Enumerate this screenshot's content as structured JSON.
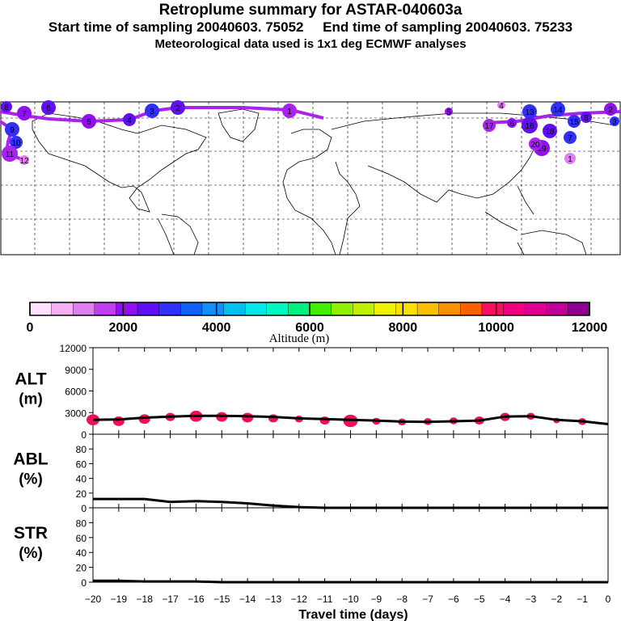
{
  "header": {
    "title": "Retroplume summary for ASTAR-040603a",
    "start_label": "Start time of sampling",
    "start_value": "20040603. 75052",
    "end_label": "End time of sampling",
    "end_value": "20040603. 75233",
    "met_line": "Meteorological data used is 1x1 deg ECMWF analyses"
  },
  "map": {
    "track_color": "#aa22ee",
    "labels": [
      "1",
      "2",
      "3",
      "4",
      "5",
      "6",
      "7",
      "8",
      "9",
      "10",
      "11",
      "12",
      "13",
      "14",
      "15",
      "16",
      "17",
      "18",
      "19",
      "20"
    ]
  },
  "colorbar": {
    "title": "Altitude (m)",
    "tick_labels": [
      "0",
      "2000",
      "4000",
      "6000",
      "8000",
      "10000",
      "12000"
    ],
    "colors": [
      "#ffe0ff",
      "#f4b0f4",
      "#e080f0",
      "#c040f0",
      "#9010f0",
      "#6010f8",
      "#3030f8",
      "#1060f8",
      "#1090f8",
      "#00c0f0",
      "#00e8e8",
      "#00f8c0",
      "#00f080",
      "#40f000",
      "#90f000",
      "#c0f000",
      "#f0f000",
      "#f8e000",
      "#f8c000",
      "#f89000",
      "#f86000",
      "#f81060",
      "#f00080",
      "#e00090",
      "#c00098",
      "#900090"
    ]
  },
  "chart_data": [
    {
      "type": "line",
      "panel": "ALT",
      "ylabel": "ALT\n(m)",
      "ylabel_lines": [
        "ALT",
        "(m)"
      ],
      "x": [
        -20,
        -19,
        -18,
        -17,
        -16,
        -15,
        -14,
        -13,
        -12,
        -11,
        -10,
        -9,
        -8,
        -7,
        -6,
        -5,
        -4,
        -3,
        -2,
        -1,
        0
      ],
      "values": [
        2000,
        2050,
        2300,
        2450,
        2550,
        2550,
        2500,
        2400,
        2200,
        2100,
        2000,
        1900,
        1750,
        1700,
        1800,
        1900,
        2450,
        2500,
        2000,
        1800,
        1400
      ],
      "markers": [
        {
          "x": -20,
          "y": 2000,
          "size": 8
        },
        {
          "x": -19,
          "y": 1800,
          "size": 7
        },
        {
          "x": -18,
          "y": 2100,
          "size": 7
        },
        {
          "x": -17,
          "y": 2400,
          "size": 6
        },
        {
          "x": -16,
          "y": 2500,
          "size": 8
        },
        {
          "x": -15,
          "y": 2400,
          "size": 7
        },
        {
          "x": -14,
          "y": 2300,
          "size": 7
        },
        {
          "x": -13,
          "y": 2200,
          "size": 6
        },
        {
          "x": -12,
          "y": 2100,
          "size": 5
        },
        {
          "x": -11,
          "y": 1900,
          "size": 6
        },
        {
          "x": -10,
          "y": 1850,
          "size": 9
        },
        {
          "x": -9,
          "y": 1800,
          "size": 5
        },
        {
          "x": -8,
          "y": 1700,
          "size": 5
        },
        {
          "x": -7,
          "y": 1750,
          "size": 5
        },
        {
          "x": -6,
          "y": 1850,
          "size": 5
        },
        {
          "x": -5,
          "y": 1900,
          "size": 6
        },
        {
          "x": -4,
          "y": 2400,
          "size": 6
        },
        {
          "x": -3,
          "y": 2500,
          "size": 5
        },
        {
          "x": -2,
          "y": 1900,
          "size": 4
        },
        {
          "x": -1,
          "y": 1750,
          "size": 5
        }
      ],
      "marker_color": "#f0105a",
      "yticks": [
        0,
        3000,
        6000,
        9000,
        12000
      ],
      "ylim": [
        0,
        12000
      ],
      "xlim": [
        -20,
        0
      ]
    },
    {
      "type": "line",
      "panel": "ABL",
      "ylabel": "ABL\n(%)",
      "ylabel_lines": [
        "ABL",
        "(%)"
      ],
      "x": [
        -20,
        -19,
        -18,
        -17,
        -16,
        -15,
        -14,
        -13,
        -12,
        -11,
        -10,
        -9,
        -8,
        -7,
        -6,
        -5,
        -4,
        -3,
        -2,
        -1,
        0
      ],
      "values": [
        12,
        12,
        12,
        8,
        9,
        8,
        6,
        3,
        1,
        0,
        0,
        0,
        0,
        0,
        0,
        0,
        0,
        0,
        0,
        0,
        0
      ],
      "yticks": [
        0,
        20,
        40,
        60,
        80
      ],
      "ylim": [
        0,
        100
      ],
      "xlim": [
        -20,
        0
      ]
    },
    {
      "type": "line",
      "panel": "STR",
      "ylabel": "STR\n(%)",
      "ylabel_lines": [
        "STR",
        "(%)"
      ],
      "x": [
        -20,
        -19,
        -18,
        -17,
        -16,
        -15,
        -14,
        -13,
        -12,
        -11,
        -10,
        -9,
        -8,
        -7,
        -6,
        -5,
        -4,
        -3,
        -2,
        -1,
        0
      ],
      "values": [
        2,
        2,
        1,
        1,
        1,
        0,
        0,
        0,
        0,
        0,
        0,
        0,
        0,
        0,
        0,
        0,
        0,
        0,
        0,
        0,
        0
      ],
      "yticks": [
        0,
        20,
        40,
        60,
        80
      ],
      "ylim": [
        0,
        100
      ],
      "xlim": [
        -20,
        0
      ]
    }
  ],
  "xaxis": {
    "title": "Travel time (days)",
    "tick_values": [
      -20,
      -19,
      -18,
      -17,
      -16,
      -15,
      -14,
      -13,
      -12,
      -11,
      -10,
      -9,
      -8,
      -7,
      -6,
      -5,
      -4,
      -3,
      -2,
      -1,
      0
    ],
    "tick_labels": [
      "−20",
      "−19",
      "−18",
      "−17",
      "−16",
      "−15",
      "−14",
      "−13",
      "−12",
      "−11",
      "−10",
      "−9",
      "−8",
      "−7",
      "−6",
      "−5",
      "−4",
      "−3",
      "−2",
      "−1",
      "0"
    ]
  }
}
